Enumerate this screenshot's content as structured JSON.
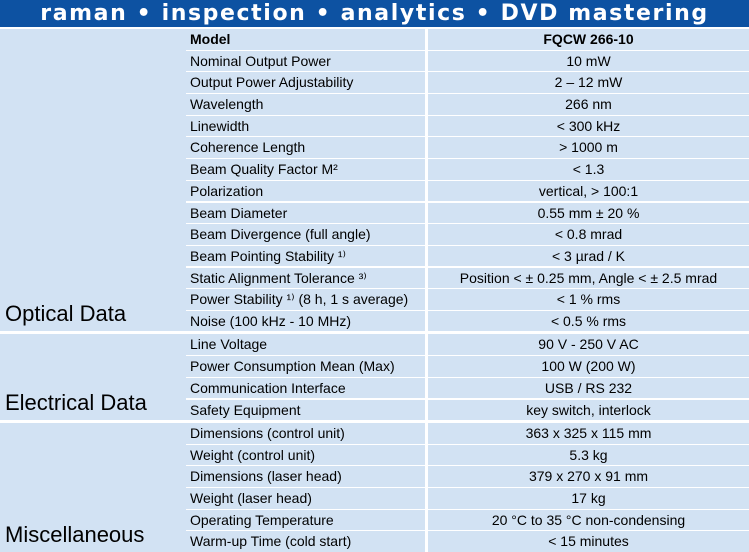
{
  "header": {
    "title": "raman • inspection • analytics • DVD mastering"
  },
  "sections": [
    {
      "label": "Optical Data",
      "rows": [
        {
          "name": "Model",
          "value": "FQCW 266-10"
        },
        {
          "name": "Nominal Output Power",
          "value": "10 mW"
        },
        {
          "name": "Output Power Adjustability",
          "value": "2 – 12 mW"
        },
        {
          "name": "Wavelength",
          "value": "266 nm"
        },
        {
          "name": "Linewidth",
          "value": "< 300 kHz"
        },
        {
          "name": "Coherence Length",
          "value": "> 1000 m"
        },
        {
          "name": "Beam Quality Factor M²",
          "value": "< 1.3"
        },
        {
          "name": "Polarization",
          "value": "vertical, > 100:1"
        },
        {
          "name": "Beam Diameter",
          "value": "0.55 mm ± 20 %"
        },
        {
          "name": "Beam Divergence (full angle)",
          "value": "< 0.8 mrad"
        },
        {
          "name": "Beam Pointing Stability ¹⁾",
          "value": "< 3 µrad / K"
        },
        {
          "name": "Static Alignment Tolerance ³⁾",
          "value": "Position < ± 0.25 mm, Angle < ± 2.5 mrad"
        },
        {
          "name": "Power Stability ¹⁾ (8 h, 1 s average)",
          "value": "< 1 % rms"
        },
        {
          "name": "Noise (100 kHz - 10 MHz)",
          "value": "< 0.5 % rms"
        }
      ]
    },
    {
      "label": "Electrical Data",
      "rows": [
        {
          "name": "Line Voltage",
          "value": "90 V - 250 V AC"
        },
        {
          "name": "Power Consumption Mean (Max)",
          "value": "100 W (200 W)"
        },
        {
          "name": "Communication Interface",
          "value": "USB / RS 232"
        },
        {
          "name": "Safety Equipment",
          "value": "key switch, interlock"
        }
      ]
    },
    {
      "label": "Miscellaneous",
      "rows": [
        {
          "name": "Dimensions (control unit)",
          "value": "363 x 325 x 115 mm"
        },
        {
          "name": "Weight (control unit)",
          "value": "5.3 kg"
        },
        {
          "name": "Dimensions (laser head)",
          "value": "379 x 270 x 91 mm"
        },
        {
          "name": "Weight (laser head)",
          "value": "17 kg"
        },
        {
          "name": "Operating Temperature",
          "value": "20 °C to 35 °C non-condensing"
        },
        {
          "name": "Warm-up Time (cold start)",
          "value": "< 15 minutes"
        }
      ]
    }
  ]
}
